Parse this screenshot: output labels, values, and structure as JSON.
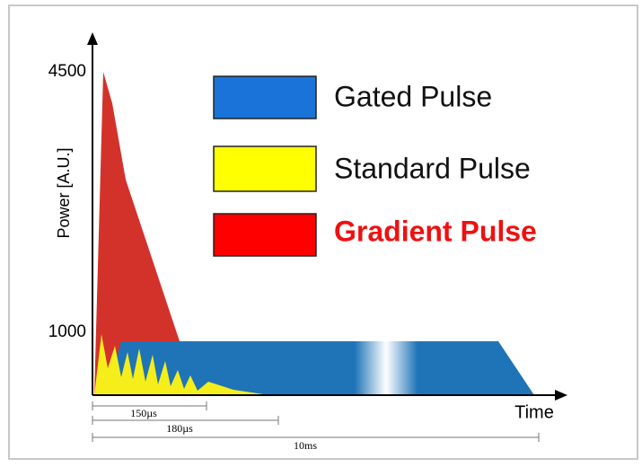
{
  "y_axis": {
    "label": "Power [A.U.]",
    "ticks": [
      "4500",
      "1000"
    ]
  },
  "x_axis": {
    "label": "Time"
  },
  "legend": [
    {
      "label": "Gated Pulse"
    },
    {
      "label": "Standard Pulse"
    },
    {
      "label": "Gradient Pulse"
    }
  ],
  "durations": [
    "150µs",
    "180µs",
    "10ms"
  ]
}
